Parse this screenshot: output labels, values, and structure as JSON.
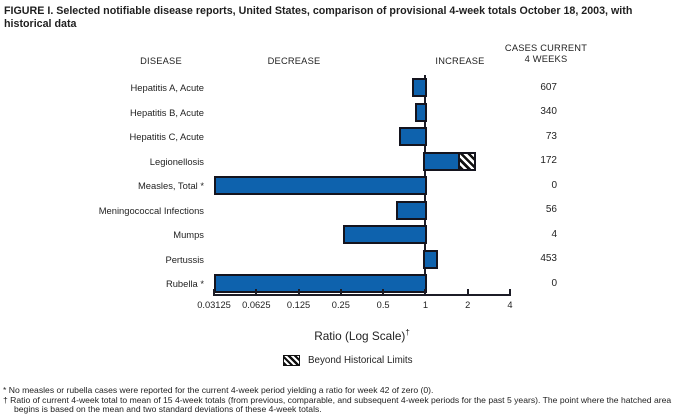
{
  "title": "FIGURE I. Selected notifiable disease reports, United States, comparison of provisional 4-week totals October 18, 2003, with historical data",
  "headers": {
    "disease": "DISEASE",
    "decrease": "DECREASE",
    "increase": "INCREASE",
    "cases_line1": "CASES CURRENT",
    "cases_line2": "4 WEEKS"
  },
  "chart_data": {
    "type": "bar",
    "orientation": "horizontal",
    "scale": "log2",
    "title": "Selected notifiable disease reports, ratio of current 4-week totals to historical data",
    "axis": {
      "label_main": "Ratio (Log Scale)",
      "label_sup": "†",
      "min": 0.03125,
      "max": 4,
      "baseline": 1,
      "ticks": [
        0.03125,
        0.0625,
        0.125,
        0.25,
        0.5,
        1,
        2,
        4
      ],
      "tick_labels": [
        "0.03125",
        "0.0625",
        "0.125",
        "0.25",
        "0.5",
        "1",
        "2",
        "4"
      ]
    },
    "rows": [
      {
        "disease": "Hepatitis A, Acute",
        "ratio": 0.8,
        "cases": "607"
      },
      {
        "disease": "Hepatitis B, Acute",
        "ratio": 0.84,
        "cases": "340"
      },
      {
        "disease": "Hepatitis C, Acute",
        "ratio": 0.65,
        "cases": "73"
      },
      {
        "disease": "Legionellosis",
        "ratio": 2.2,
        "cases": "172",
        "beyond_limits_from": 1.7
      },
      {
        "disease": "Measles, Total *",
        "ratio": 0,
        "cases": "0"
      },
      {
        "disease": "Meningococcal Infections",
        "ratio": 0.62,
        "cases": "56"
      },
      {
        "disease": "Mumps",
        "ratio": 0.26,
        "cases": "4"
      },
      {
        "disease": "Pertussis",
        "ratio": 1.22,
        "cases": "453"
      },
      {
        "disease": "Rubella *",
        "ratio": 0,
        "cases": "0"
      }
    ],
    "legend": [
      {
        "label": "Beyond Historical Limits",
        "swatch": "black-white-diagonal-hatch"
      }
    ]
  },
  "footnotes": [
    {
      "marker": "*",
      "text": "No measles or rubella cases were reported for the current 4-week period yielding a ratio for week 42 of zero (0)."
    },
    {
      "marker": "†",
      "text": "Ratio of current 4-week total to mean of 15 4-week totals (from previous, comparable, and subsequent 4-week periods for the past 5 years). The point where the hatched area begins is based on the mean and two standard deviations of these 4-week totals."
    }
  ],
  "colors": {
    "bar_fill": "#0e62ad",
    "bar_border": "#14141e",
    "axis": "#1c1c26",
    "hatch_dark": "#111111",
    "hatch_light": "#ffffff"
  }
}
